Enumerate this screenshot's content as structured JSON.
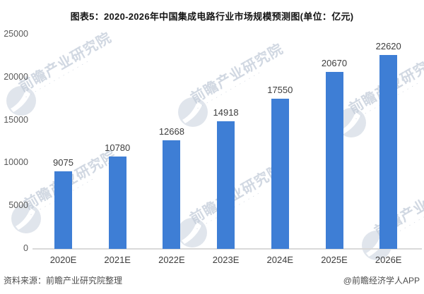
{
  "page": {
    "title": "图表5：2020-2026年中国集成电路行业市场规模预测图(单位：亿元)"
  },
  "chart_data": {
    "type": "bar",
    "title": "2020-2026年中国集成电路行业市场规模预测图",
    "unit": "亿元",
    "categories": [
      "2020E",
      "2021E",
      "2022E",
      "2023E",
      "2024E",
      "2025E",
      "2026E"
    ],
    "values": [
      9075,
      10780,
      12668,
      14918,
      17550,
      20670,
      22620
    ],
    "yticks": [
      0,
      5000,
      10000,
      15000,
      20000,
      25000
    ],
    "ylim": [
      0,
      25000
    ],
    "xlabel": "",
    "ylabel": "",
    "grid": false,
    "legend": "none",
    "bar_color": "#3e7ed5",
    "axis_line_color": "#d9d9d9"
  },
  "footer": {
    "source": "资料来源：前瞻产业研究院整理",
    "brand": "@前瞻经济学人APP"
  },
  "watermark": {
    "text": "前瞻产业研究院",
    "subtext_decoration": "‐ ‐ ‐ ‐ ‐ ‐ ‐ ‐ ‐ ‐ ‐ ‐ ‐ ‐",
    "color": "#c6ceda",
    "logo": "qianzhan-logo"
  }
}
